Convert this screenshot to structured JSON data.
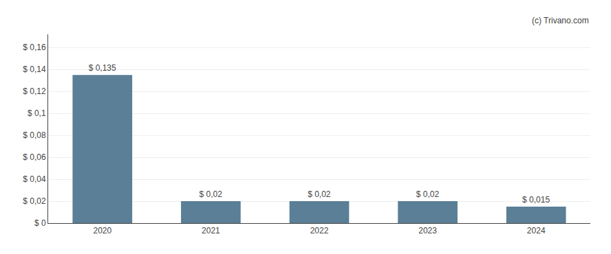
{
  "chart_data": {
    "type": "bar",
    "categories": [
      "2020",
      "2021",
      "2022",
      "2023",
      "2024"
    ],
    "values": [
      0.135,
      0.02,
      0.02,
      0.02,
      0.015
    ],
    "value_labels": [
      "$ 0,135",
      "$ 0,02",
      "$ 0,02",
      "$ 0,02",
      "$ 0,015"
    ],
    "data_labels": true,
    "color": "#5a7f96",
    "ylim": [
      0,
      0.172
    ],
    "yticks": [
      {
        "value": 0,
        "label": "$ 0"
      },
      {
        "value": 0.02,
        "label": "$ 0,02"
      },
      {
        "value": 0.04,
        "label": "$ 0,04"
      },
      {
        "value": 0.06,
        "label": "$ 0,06"
      },
      {
        "value": 0.08,
        "label": "$ 0,08"
      },
      {
        "value": 0.1,
        "label": "$ 0,1"
      },
      {
        "value": 0.12,
        "label": "$ 0,12"
      },
      {
        "value": 0.14,
        "label": "$ 0,14"
      },
      {
        "value": 0.16,
        "label": "$ 0,16"
      }
    ],
    "grid": true,
    "annotations": [
      "(c) Trivano.com"
    ]
  }
}
